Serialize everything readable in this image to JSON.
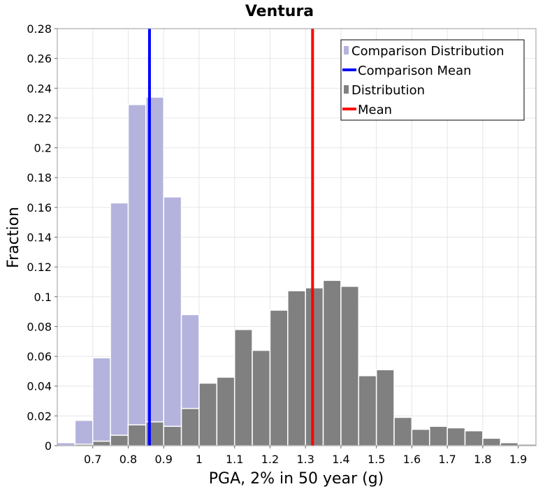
{
  "chart_data": {
    "type": "bar",
    "title": "Ventura",
    "xlabel": "PGA, 2% in 50 year (g)",
    "ylabel": "Fraction",
    "xlim": [
      0.6,
      1.95
    ],
    "ylim": [
      0,
      0.28
    ],
    "bin_width": 0.05,
    "x_ticks": [
      0.7,
      0.8,
      0.9,
      1.0,
      1.1,
      1.2,
      1.3,
      1.4,
      1.5,
      1.6,
      1.7,
      1.8,
      1.9
    ],
    "x_tick_labels": [
      "0.7",
      "0.8",
      "0.9",
      "1",
      "1.1",
      "1.2",
      "1.3",
      "1.4",
      "1.5",
      "1.6",
      "1.7",
      "1.8",
      "1.9"
    ],
    "y_ticks": [
      0,
      0.02,
      0.04,
      0.06,
      0.08,
      0.1,
      0.12,
      0.14,
      0.16,
      0.18,
      0.2,
      0.22,
      0.24,
      0.26,
      0.28
    ],
    "y_tick_labels": [
      "0",
      "0.02",
      "0.04",
      "0.06",
      "0.08",
      "0.1",
      "0.12",
      "0.14",
      "0.16",
      "0.18",
      "0.2",
      "0.22",
      "0.24",
      "0.26",
      "0.28"
    ],
    "grid": true,
    "legend_position": "top-right",
    "series": [
      {
        "name": "Comparison Distribution",
        "kind": "histogram",
        "color": "#b3b3dd",
        "x": [
          0.6,
          0.65,
          0.7,
          0.75,
          0.8,
          0.85,
          0.9,
          0.95
        ],
        "values": [
          0.002,
          0.017,
          0.059,
          0.163,
          0.229,
          0.234,
          0.167,
          0.088
        ]
      },
      {
        "name": "Comparison Mean",
        "kind": "vline",
        "color": "#0000ff",
        "x": 0.86
      },
      {
        "name": "Distribution",
        "kind": "histogram",
        "color": "#808080",
        "x": [
          0.65,
          0.7,
          0.75,
          0.8,
          0.85,
          0.9,
          0.95,
          1.0,
          1.05,
          1.1,
          1.15,
          1.2,
          1.25,
          1.3,
          1.35,
          1.4,
          1.45,
          1.5,
          1.55,
          1.6,
          1.65,
          1.7,
          1.75,
          1.8,
          1.85,
          1.9
        ],
        "values": [
          0.001,
          0.003,
          0.007,
          0.014,
          0.016,
          0.013,
          0.025,
          0.042,
          0.046,
          0.078,
          0.064,
          0.091,
          0.104,
          0.106,
          0.111,
          0.107,
          0.047,
          0.051,
          0.019,
          0.011,
          0.013,
          0.012,
          0.01,
          0.005,
          0.002,
          0.001
        ]
      },
      {
        "name": "Mean",
        "kind": "vline",
        "color": "#ff0000",
        "x": 1.32
      }
    ]
  }
}
